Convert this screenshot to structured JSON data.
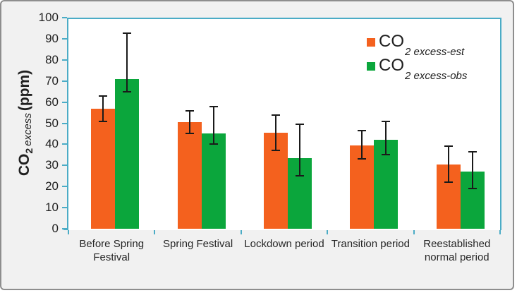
{
  "chart_data": {
    "type": "bar",
    "title": "",
    "categories": [
      "Before Spring Festival",
      "Spring Festival",
      "Lockdown period",
      "Transition period",
      "Reestablished normal period"
    ],
    "series": [
      {
        "name": "CO2 excess-est",
        "color": "#F4611E",
        "values": [
          57,
          50.5,
          45.5,
          39.5,
          30.5
        ],
        "err_low": [
          51,
          45,
          37,
          33,
          22
        ],
        "err_high": [
          63,
          56,
          54,
          46.5,
          39
        ]
      },
      {
        "name": "CO2 excess-obs",
        "color": "#0BA63C",
        "values": [
          71,
          45,
          33.5,
          42,
          27
        ],
        "err_low": [
          65,
          40,
          25,
          35,
          19
        ],
        "err_high": [
          92.5,
          58,
          49.5,
          51,
          36.5
        ]
      }
    ],
    "xlabel": "",
    "ylabel": "CO2 excess (ppm)",
    "ylabel_parts": {
      "prefix": "CO",
      "sub": "2",
      "italic": "excess",
      "unit": "(ppm)"
    },
    "ylim": [
      0,
      100
    ],
    "yticks": [
      0,
      10,
      20,
      30,
      40,
      50,
      60,
      70,
      80,
      90,
      100
    ],
    "grid": false,
    "legend_position": "top-right",
    "legend": {
      "items": [
        {
          "prefix": "CO",
          "sub": "2 excess-est",
          "color": "#F4611E"
        },
        {
          "prefix": "CO",
          "sub": "2 excess-obs",
          "color": "#0BA63C"
        }
      ]
    },
    "axis_color": "#4BACC6",
    "error_bar_color": "#1A1A1A",
    "plot_background": "#FFFFFF",
    "figure_background": "#F1F1F1"
  }
}
